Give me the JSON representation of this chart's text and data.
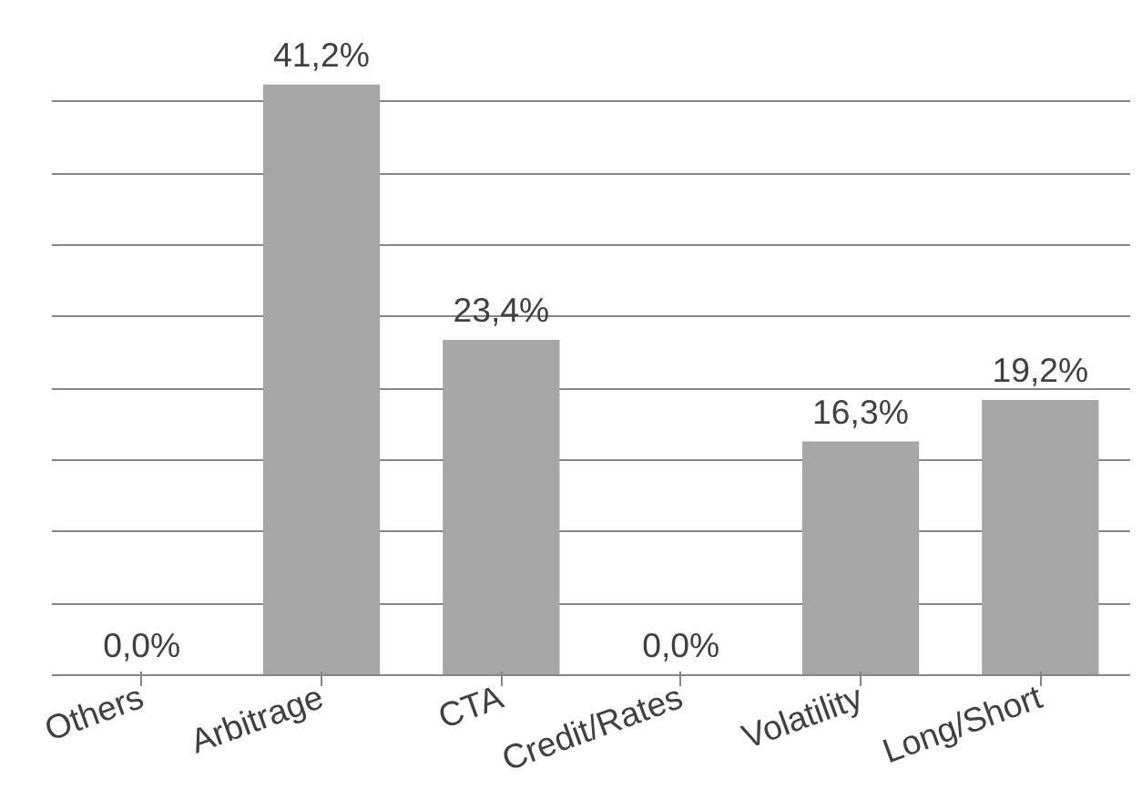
{
  "chart_data": {
    "type": "bar",
    "categories": [
      "Others",
      "Arbitrage",
      "CTA",
      "Credit/Rates",
      "Volatility",
      "Long/Short"
    ],
    "values": [
      0.0,
      41.2,
      23.4,
      0.0,
      16.3,
      19.2
    ],
    "value_labels": [
      "0,0%",
      "41,2%",
      "23,4%",
      "0,0%",
      "16,3%",
      "19,2%"
    ],
    "color": "#a6a6a6",
    "grid": "y",
    "tick_labels": "x"
  }
}
